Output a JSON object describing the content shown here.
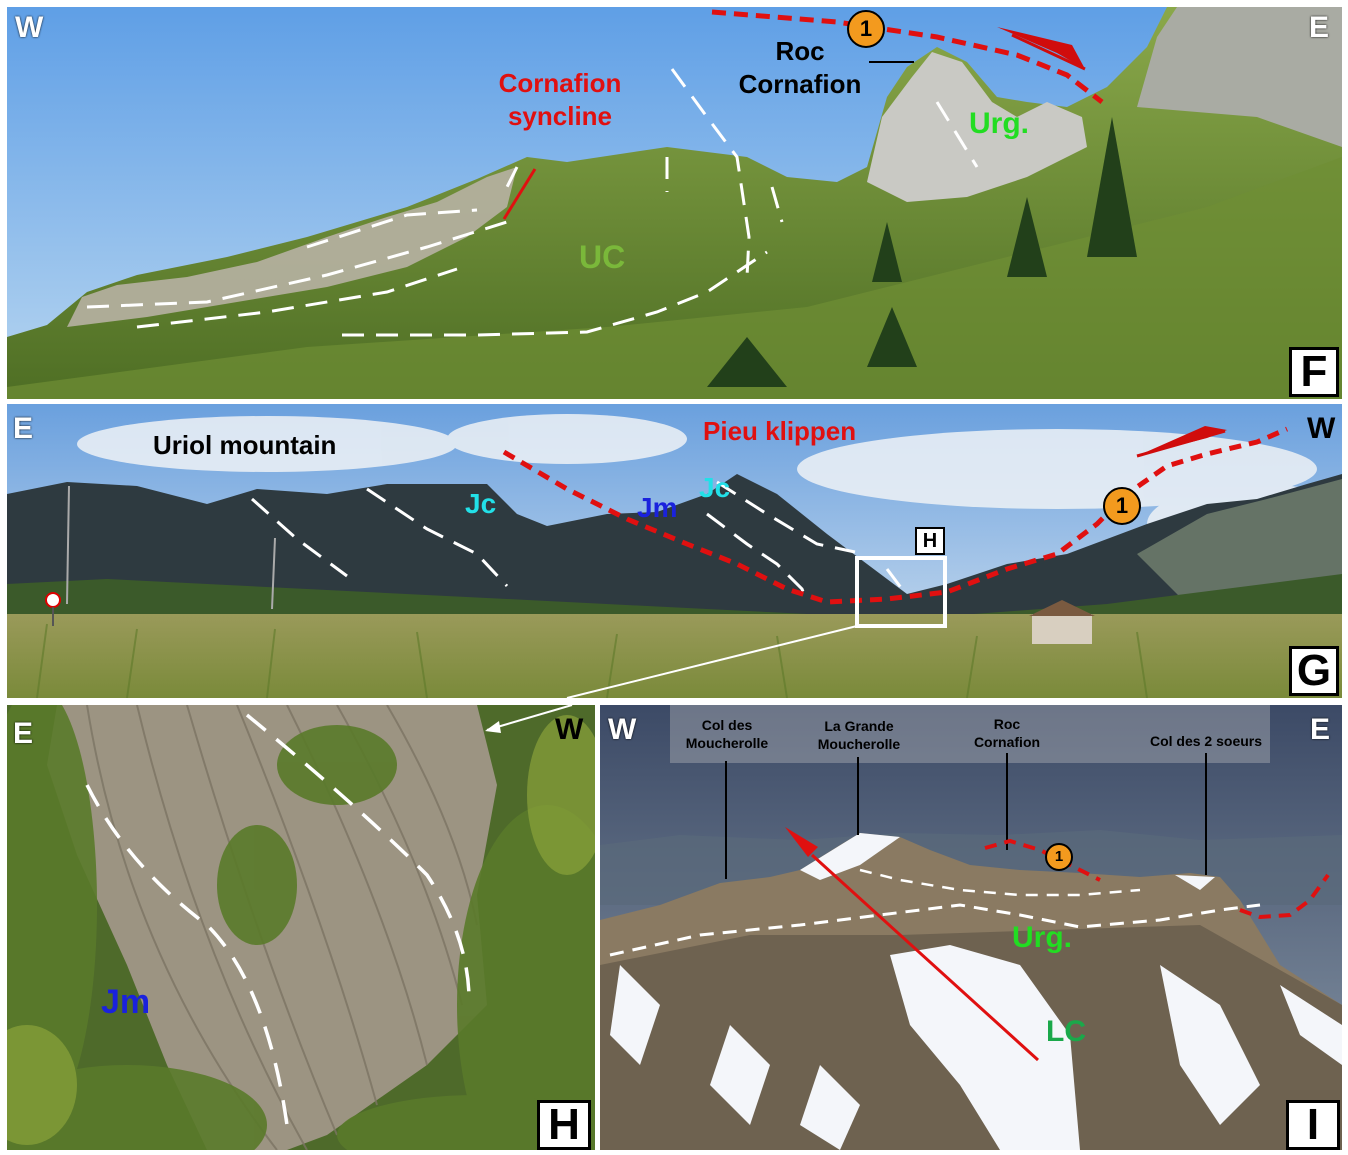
{
  "panel_f": {
    "compass_left": "W",
    "compass_right": "E",
    "panel_label": "F",
    "syncline_label": "Cornafion\nsyncline",
    "roc_label": "Roc\nCornafion",
    "urg_label": "Urg.",
    "uc_label": "UC",
    "thrust_badge": "1"
  },
  "panel_g": {
    "compass_left": "E",
    "compass_right": "W",
    "panel_label": "G",
    "uriol_label": "Uriol mountain",
    "pieu_label": "Pieu klippen",
    "jc_label_1": "Jc",
    "jc_label_2": "Jc",
    "jm_label": "Jm",
    "inset_label": "H",
    "thrust_badge": "1"
  },
  "panel_h": {
    "compass_left": "E",
    "compass_right": "W",
    "panel_label": "H",
    "jm_label": "Jm"
  },
  "panel_i": {
    "compass_left": "W",
    "compass_right": "E",
    "panel_label": "I",
    "peak_1": "Col des\nMoucherolle",
    "peak_2": "La Grande\nMoucherolle",
    "peak_3": "Roc\nCornafion",
    "peak_4": "Col des 2 soeurs",
    "urg_label": "Urg.",
    "lc_label": "LC",
    "thrust_badge": "1"
  },
  "colors": {
    "thrust_red": "#e01010",
    "urg_green": "#22dd22",
    "uc_green": "#7ab83a",
    "lc_green": "#1aa84a",
    "jm_blue": "#1a22dd",
    "jc_cyan": "#22e0e8",
    "badge_orange": "#f39a1e"
  }
}
